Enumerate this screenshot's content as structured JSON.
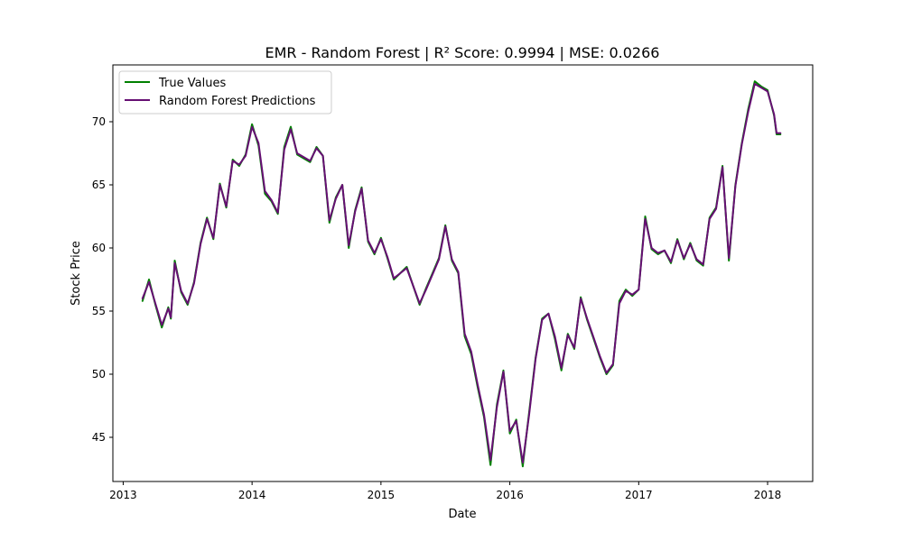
{
  "chart_data": {
    "type": "line",
    "title": "EMR - Random Forest | R² Score: 0.9994 | MSE: 0.0266",
    "xlabel": "Date",
    "ylabel": "Stock Price",
    "xlim": [
      2012.92,
      2018.35
    ],
    "ylim": [
      41.5,
      74.5
    ],
    "x_ticks": [
      {
        "value": 2013,
        "label": "2013"
      },
      {
        "value": 2014,
        "label": "2014"
      },
      {
        "value": 2015,
        "label": "2015"
      },
      {
        "value": 2016,
        "label": "2016"
      },
      {
        "value": 2017,
        "label": "2017"
      },
      {
        "value": 2018,
        "label": "2018"
      }
    ],
    "y_ticks": [
      {
        "value": 45,
        "label": "45"
      },
      {
        "value": 50,
        "label": "50"
      },
      {
        "value": 55,
        "label": "55"
      },
      {
        "value": 60,
        "label": "60"
      },
      {
        "value": 65,
        "label": "65"
      },
      {
        "value": 70,
        "label": "70"
      }
    ],
    "grid": false,
    "legend_position": "top-left",
    "series": [
      {
        "name": "True Values",
        "color": "#008000",
        "x": [
          2013.15,
          2013.2,
          2013.25,
          2013.3,
          2013.35,
          2013.37,
          2013.4,
          2013.45,
          2013.5,
          2013.55,
          2013.6,
          2013.65,
          2013.7,
          2013.75,
          2013.8,
          2013.85,
          2013.9,
          2013.95,
          2014.0,
          2014.05,
          2014.1,
          2014.15,
          2014.2,
          2014.25,
          2014.3,
          2014.35,
          2014.45,
          2014.5,
          2014.55,
          2014.6,
          2014.65,
          2014.7,
          2014.75,
          2014.8,
          2014.85,
          2014.9,
          2014.95,
          2015.0,
          2015.05,
          2015.1,
          2015.2,
          2015.3,
          2015.35,
          2015.4,
          2015.45,
          2015.5,
          2015.55,
          2015.6,
          2015.65,
          2015.7,
          2015.75,
          2015.8,
          2015.85,
          2015.9,
          2015.95,
          2016.0,
          2016.05,
          2016.1,
          2016.15,
          2016.2,
          2016.25,
          2016.3,
          2016.35,
          2016.4,
          2016.45,
          2016.5,
          2016.55,
          2016.6,
          2016.65,
          2016.7,
          2016.75,
          2016.8,
          2016.85,
          2016.9,
          2016.95,
          2017.0,
          2017.05,
          2017.1,
          2017.15,
          2017.2,
          2017.25,
          2017.3,
          2017.35,
          2017.4,
          2017.45,
          2017.5,
          2017.55,
          2017.6,
          2017.65,
          2017.7,
          2017.75,
          2017.8,
          2017.85,
          2017.9,
          2017.95,
          2018.0,
          2018.05,
          2018.07,
          2018.1
        ],
        "values": [
          55.8,
          57.5,
          55.5,
          53.7,
          55.3,
          54.4,
          59.0,
          56.5,
          55.5,
          57.3,
          60.4,
          62.4,
          60.7,
          65.1,
          63.2,
          67.0,
          66.5,
          67.4,
          69.8,
          68.1,
          64.3,
          63.7,
          62.7,
          68.0,
          69.6,
          67.4,
          66.8,
          68.0,
          67.3,
          62.0,
          64.0,
          65.0,
          60.0,
          63.0,
          64.8,
          60.5,
          59.5,
          60.8,
          59.2,
          57.5,
          58.5,
          55.5,
          56.8,
          58.0,
          59.2,
          61.8,
          59.0,
          58.0,
          53.0,
          51.6,
          49.0,
          46.6,
          42.8,
          47.6,
          50.3,
          45.3,
          46.4,
          42.7,
          47.0,
          51.3,
          54.4,
          54.8,
          52.8,
          50.3,
          53.2,
          52.0,
          56.1,
          54.3,
          52.8,
          51.3,
          50.0,
          50.7,
          55.8,
          56.7,
          56.2,
          56.7,
          62.5,
          59.9,
          59.5,
          59.8,
          58.8,
          60.7,
          59.1,
          60.4,
          59.0,
          58.6,
          62.4,
          63.2,
          66.5,
          59.0,
          65.0,
          68.3,
          71.0,
          73.2,
          72.8,
          72.5,
          70.5,
          69.0,
          69.0
        ]
      },
      {
        "name": "Random Forest Predictions",
        "color": "#660f73",
        "x": [
          2013.15,
          2013.2,
          2013.25,
          2013.3,
          2013.35,
          2013.37,
          2013.4,
          2013.45,
          2013.5,
          2013.55,
          2013.6,
          2013.65,
          2013.7,
          2013.75,
          2013.8,
          2013.85,
          2013.9,
          2013.95,
          2014.0,
          2014.05,
          2014.1,
          2014.15,
          2014.2,
          2014.25,
          2014.3,
          2014.35,
          2014.45,
          2014.5,
          2014.55,
          2014.6,
          2014.65,
          2014.7,
          2014.75,
          2014.8,
          2014.85,
          2014.9,
          2014.95,
          2015.0,
          2015.05,
          2015.1,
          2015.2,
          2015.3,
          2015.35,
          2015.4,
          2015.45,
          2015.5,
          2015.55,
          2015.6,
          2015.65,
          2015.7,
          2015.75,
          2015.8,
          2015.85,
          2015.9,
          2015.95,
          2016.0,
          2016.05,
          2016.1,
          2016.15,
          2016.2,
          2016.25,
          2016.3,
          2016.35,
          2016.4,
          2016.45,
          2016.5,
          2016.55,
          2016.6,
          2016.65,
          2016.7,
          2016.75,
          2016.8,
          2016.85,
          2016.9,
          2016.95,
          2017.0,
          2017.05,
          2017.1,
          2017.15,
          2017.2,
          2017.25,
          2017.3,
          2017.35,
          2017.4,
          2017.45,
          2017.5,
          2017.55,
          2017.6,
          2017.65,
          2017.7,
          2017.75,
          2017.8,
          2017.85,
          2017.9,
          2017.95,
          2018.0,
          2018.05,
          2018.07,
          2018.1
        ],
        "values": [
          56.0,
          57.3,
          55.6,
          53.9,
          55.2,
          54.5,
          58.8,
          56.6,
          55.6,
          57.2,
          60.3,
          62.3,
          60.8,
          65.0,
          63.3,
          66.9,
          66.6,
          67.3,
          69.6,
          68.3,
          64.5,
          63.8,
          62.8,
          67.8,
          69.4,
          67.5,
          66.9,
          67.9,
          67.3,
          62.2,
          63.9,
          65.0,
          60.2,
          62.9,
          64.7,
          60.6,
          59.6,
          60.7,
          59.3,
          57.6,
          58.4,
          55.6,
          56.7,
          57.9,
          59.1,
          61.7,
          59.1,
          58.1,
          53.2,
          51.8,
          49.2,
          46.8,
          43.2,
          47.4,
          50.2,
          45.5,
          46.3,
          43.0,
          46.8,
          51.2,
          54.3,
          54.8,
          53.0,
          50.5,
          53.1,
          52.1,
          56.0,
          54.4,
          52.9,
          51.4,
          50.1,
          50.8,
          55.6,
          56.6,
          56.3,
          56.7,
          62.3,
          60.0,
          59.6,
          59.8,
          58.9,
          60.6,
          59.2,
          60.3,
          59.1,
          58.7,
          62.3,
          63.1,
          66.4,
          59.2,
          64.9,
          68.2,
          70.8,
          73.0,
          72.7,
          72.4,
          70.6,
          69.1,
          69.1
        ]
      }
    ]
  }
}
